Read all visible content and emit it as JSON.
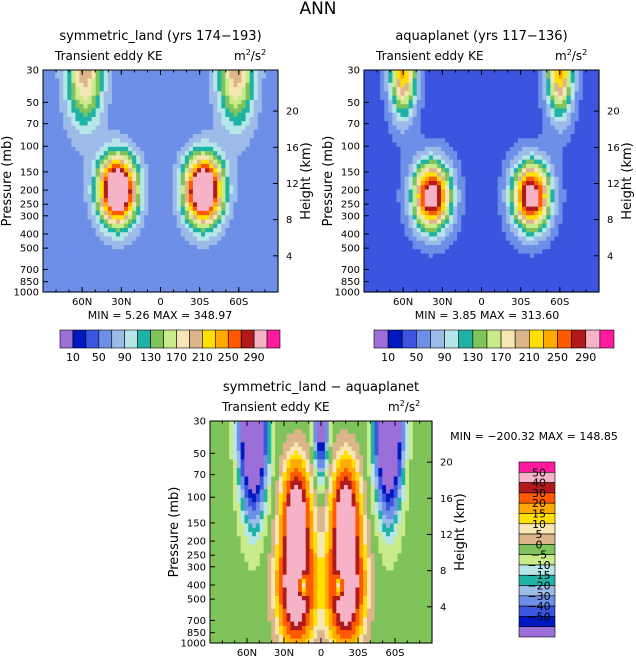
{
  "figure_title": "ANN",
  "chart_data": [
    {
      "type": "heatmap",
      "title": "symmetric_land (yrs 174−193)",
      "subtitle": "Transient eddy KE",
      "units_base": "m",
      "units_sup": "2",
      "units_sep": "/s",
      "units_sup2": "2",
      "xlabel": "",
      "ylabel": "Pressure (mb)",
      "y2label": "Height (km)",
      "x_ticks": [
        "60N",
        "30N",
        "0",
        "30S",
        "60S"
      ],
      "x_tick_values": [
        60,
        30,
        0,
        -30,
        -60
      ],
      "y_ticks": [
        "30",
        "50",
        "70",
        "100",
        "150",
        "200",
        "250",
        "300",
        "400",
        "500",
        "700",
        "850",
        "1000"
      ],
      "y_tick_values": [
        30,
        50,
        70,
        100,
        150,
        200,
        250,
        300,
        400,
        500,
        700,
        850,
        1000
      ],
      "y2_ticks": [
        "4",
        "8",
        "12",
        "16",
        "20"
      ],
      "y2_tick_values": [
        4,
        8,
        12,
        16,
        20
      ],
      "min_label": "MIN =",
      "min_value": "5.26",
      "max_label": "MAX =",
      "max_value": "348.97",
      "min": 5.26,
      "max": 348.97,
      "colorbar_labels": [
        "10",
        "50",
        "90",
        "130",
        "170",
        "210",
        "250",
        "290"
      ],
      "levels": [
        10,
        30,
        50,
        70,
        90,
        110,
        130,
        150,
        170,
        190,
        210,
        230,
        250,
        270,
        290
      ],
      "colors": [
        "#9b6ed8",
        "#0018bf",
        "#3b55e0",
        "#6d8fe8",
        "#9dbbe9",
        "#b7e6e8",
        "#1fb3a6",
        "#7fc35a",
        "#c9eb8a",
        "#f5e6b4",
        "#ddb58a",
        "#ffe000",
        "#ffaa00",
        "#ff5a00",
        "#b11a1a",
        "#f6b3c8",
        "#ff1a9e"
      ],
      "features": [
        {
          "lat": 33,
          "p": 200,
          "amp": 350,
          "wlat": 14,
          "wz": 3.6
        },
        {
          "lat": -33,
          "p": 200,
          "amp": 350,
          "wlat": 14,
          "wz": 3.6
        },
        {
          "lat": 58,
          "p": 30,
          "amp": 150,
          "wlat": 14,
          "wz": 6
        },
        {
          "lat": -58,
          "p": 30,
          "amp": 150,
          "wlat": 14,
          "wz": 6
        }
      ],
      "background": 55
    },
    {
      "type": "heatmap",
      "title": "aquaplanet (yrs 117−136)",
      "subtitle": "Transient eddy KE",
      "units_base": "m",
      "units_sup": "2",
      "units_sep": "/s",
      "units_sup2": "2",
      "xlabel": "",
      "ylabel": "Pressure (mb)",
      "y2label": "Height (km)",
      "x_ticks": [
        "60N",
        "30N",
        "0",
        "30S",
        "60S"
      ],
      "x_tick_values": [
        60,
        30,
        0,
        -30,
        -60
      ],
      "y_ticks": [
        "30",
        "50",
        "70",
        "100",
        "150",
        "200",
        "250",
        "300",
        "400",
        "500",
        "700",
        "850",
        "1000"
      ],
      "y_tick_values": [
        30,
        50,
        70,
        100,
        150,
        200,
        250,
        300,
        400,
        500,
        700,
        850,
        1000
      ],
      "y2_ticks": [
        "4",
        "8",
        "12",
        "16",
        "20"
      ],
      "y2_tick_values": [
        4,
        8,
        12,
        16,
        20
      ],
      "min_label": "MIN =",
      "min_value": "3.85",
      "max_label": "MAX =",
      "max_value": "313.60",
      "min": 3.85,
      "max": 313.6,
      "colorbar_labels": [
        "10",
        "50",
        "90",
        "130",
        "170",
        "210",
        "250",
        "290"
      ],
      "levels": [
        10,
        30,
        50,
        70,
        90,
        110,
        130,
        150,
        170,
        190,
        210,
        230,
        250,
        270,
        290
      ],
      "colors": [
        "#9b6ed8",
        "#0018bf",
        "#3b55e0",
        "#6d8fe8",
        "#9dbbe9",
        "#b7e6e8",
        "#1fb3a6",
        "#7fc35a",
        "#c9eb8a",
        "#f5e6b4",
        "#ddb58a",
        "#ffe000",
        "#ffaa00",
        "#ff5a00",
        "#b11a1a",
        "#f6b3c8",
        "#ff1a9e"
      ],
      "features": [
        {
          "lat": 38,
          "p": 220,
          "amp": 290,
          "wlat": 14,
          "wz": 3.6
        },
        {
          "lat": -38,
          "p": 220,
          "amp": 290,
          "wlat": 14,
          "wz": 3.6
        },
        {
          "lat": 60,
          "p": 30,
          "amp": 200,
          "wlat": 10,
          "wz": 5
        },
        {
          "lat": -60,
          "p": 30,
          "amp": 200,
          "wlat": 10,
          "wz": 5
        }
      ],
      "background": 40
    },
    {
      "type": "heatmap",
      "title": "symmetric_land − aquaplanet",
      "subtitle": "Transient eddy KE",
      "units_base": "m",
      "units_sup": "2",
      "units_sep": "/s",
      "units_sup2": "2",
      "xlabel": "",
      "ylabel": "Pressure (mb)",
      "y2label": "Height (km)",
      "x_ticks": [
        "60N",
        "30N",
        "0",
        "30S",
        "60S"
      ],
      "x_tick_values": [
        60,
        30,
        0,
        -30,
        -60
      ],
      "y_ticks": [
        "30",
        "50",
        "70",
        "100",
        "150",
        "200",
        "250",
        "300",
        "400",
        "500",
        "700",
        "850",
        "1000"
      ],
      "y_tick_values": [
        30,
        50,
        70,
        100,
        150,
        200,
        250,
        300,
        400,
        500,
        700,
        850,
        1000
      ],
      "y2_ticks": [
        "4",
        "8",
        "12",
        "16",
        "20"
      ],
      "y2_tick_values": [
        4,
        8,
        12,
        16,
        20
      ],
      "min_label": "MIN =",
      "min_value": "−200.32",
      "max_label": "MAX =",
      "max_value": "148.85",
      "min": -200.32,
      "max": 148.85,
      "colorbar_labels": [
        "50",
        "40",
        "30",
        "20",
        "15",
        "10",
        "5",
        "0",
        "−5",
        "−10",
        "−15",
        "−20",
        "−30",
        "−40",
        "−50"
      ],
      "levels": [
        -50,
        -40,
        -30,
        -20,
        -15,
        -10,
        -5,
        0,
        5,
        10,
        15,
        20,
        30,
        40,
        50
      ],
      "colors": [
        "#9b6ed8",
        "#0018bf",
        "#3b55e0",
        "#6d8fe8",
        "#9dbbe9",
        "#1fb3a6",
        "#b7e6e8",
        "#c9eb8a",
        "#7fc35a",
        "#ddb58a",
        "#f5e6b4",
        "#ffe000",
        "#ffaa00",
        "#ff5a00",
        "#b11a1a",
        "#f6b3c8",
        "#ff1a9e"
      ],
      "features": [
        {
          "lat": 20,
          "p": 400,
          "amp": 80,
          "wlat": 13,
          "wz": 6
        },
        {
          "lat": -20,
          "p": 400,
          "amp": 80,
          "wlat": 13,
          "wz": 6
        },
        {
          "lat": 20,
          "p": 120,
          "amp": 60,
          "wlat": 10,
          "wz": 5
        },
        {
          "lat": -20,
          "p": 120,
          "amp": 60,
          "wlat": 10,
          "wz": 5
        },
        {
          "lat": 55,
          "p": 30,
          "amp": -140,
          "wlat": 9,
          "wz": 8
        },
        {
          "lat": -55,
          "p": 30,
          "amp": -140,
          "wlat": 9,
          "wz": 8
        },
        {
          "lat": 0,
          "p": 30,
          "amp": -70,
          "wlat": 5,
          "wz": 5
        },
        {
          "lat": 15,
          "p": 400,
          "amp": -60,
          "wlat": 4,
          "wz": 1.5
        },
        {
          "lat": -15,
          "p": 400,
          "amp": -60,
          "wlat": 4,
          "wz": 1.5
        }
      ],
      "background": 2
    }
  ]
}
